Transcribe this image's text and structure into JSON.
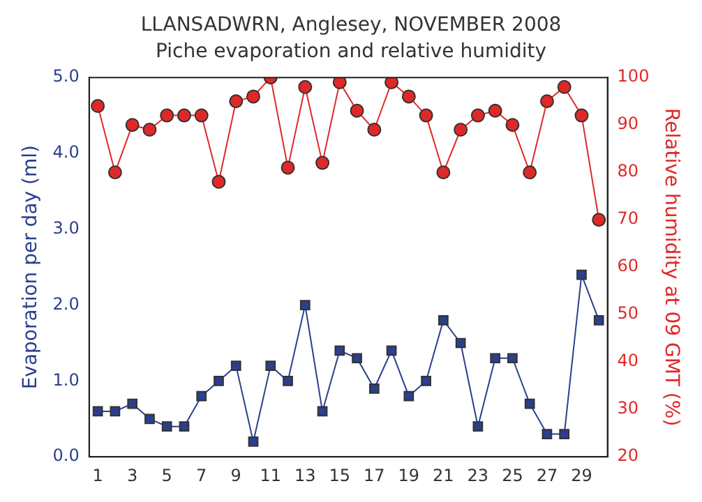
{
  "chart_data": {
    "type": "line",
    "title": "LLANSADWRN, Anglesey, NOVEMBER 2008",
    "subtitle": "Piche evaporation and relative humidity",
    "ylabel": "Evaporation per day (ml)",
    "y2label": "Relative humidity at 09 GMT (%)",
    "x": [
      1,
      2,
      3,
      4,
      5,
      6,
      7,
      8,
      9,
      10,
      11,
      12,
      13,
      14,
      15,
      16,
      17,
      18,
      19,
      20,
      21,
      22,
      23,
      24,
      25,
      26,
      27,
      28,
      29,
      30
    ],
    "xlim": [
      0.5,
      30.5
    ],
    "xticks": [
      1,
      3,
      5,
      7,
      9,
      11,
      13,
      15,
      17,
      19,
      21,
      23,
      25,
      27,
      29
    ],
    "series": [
      {
        "color": "#2b3f8c",
        "marker": "square",
        "values": [
          0.6,
          0.6,
          0.7,
          0.5,
          0.4,
          0.4,
          0.8,
          1.0,
          1.2,
          0.2,
          1.2,
          1.0,
          2.0,
          0.6,
          1.4,
          1.3,
          0.9,
          1.4,
          0.8,
          1.0,
          1.8,
          1.5,
          0.4,
          1.3,
          1.3,
          0.7,
          0.3,
          0.3,
          2.4,
          1.8
        ]
      },
      {
        "color": "#e02828",
        "marker": "circle",
        "axis": "y2",
        "values": [
          94,
          80,
          90,
          89,
          92,
          92,
          92,
          78,
          95,
          96,
          100,
          81,
          98,
          82,
          99,
          93,
          89,
          99,
          96,
          92,
          80,
          89,
          92,
          93,
          90,
          80,
          95,
          98,
          92,
          70
        ]
      }
    ],
    "ylim": [
      0,
      5
    ],
    "yticks": [
      {
        "value": 0,
        "label": "0.0"
      },
      {
        "value": 1,
        "label": "1.0"
      },
      {
        "value": 2,
        "label": "2.0"
      },
      {
        "value": 3,
        "label": "3.0"
      },
      {
        "value": 4,
        "label": "4.0"
      },
      {
        "value": 5,
        "label": "5.0"
      }
    ],
    "y2lim": [
      20,
      100
    ],
    "y2ticks": [
      20,
      30,
      40,
      50,
      60,
      70,
      80,
      90,
      100
    ],
    "grid": false,
    "legend": false
  }
}
